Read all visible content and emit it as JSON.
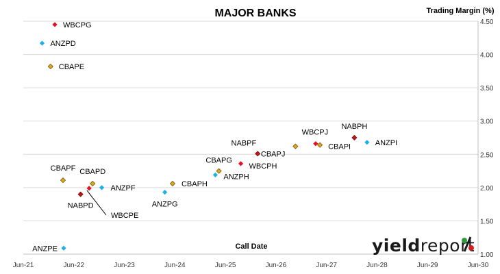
{
  "chart_data": {
    "type": "scatter",
    "title": "MAJOR BANKS",
    "xlabel": "Call Date",
    "ylabel": "Trading Margin (%)",
    "x_ticks": [
      "Jun-21",
      "Jun-22",
      "Jun-23",
      "Jun-24",
      "Jun-25",
      "Jun-26",
      "Jun-27",
      "Jun-28",
      "Jun-29",
      "Jun-30"
    ],
    "xlim": [
      "2021-06",
      "2030-06"
    ],
    "y_ticks": [
      "1.00",
      "1.50",
      "2.00",
      "2.50",
      "3.00",
      "3.50",
      "4.00",
      "4.50"
    ],
    "ylim": [
      1.0,
      4.5
    ],
    "y_axis_side": "right",
    "grid": "horizontal",
    "series": [
      {
        "name": "ANZ",
        "color": "#1fb0e6",
        "points": [
          {
            "label": "ANZPD",
            "x": "2021-10-15",
            "y": 4.17
          },
          {
            "label": "ANZPE",
            "x": "2022-03-20",
            "y": 1.09
          },
          {
            "label": "ANZPF",
            "x": "2022-12-20",
            "y": 2.0
          },
          {
            "label": "ANZPG",
            "x": "2024-03-20",
            "y": 1.93
          },
          {
            "label": "ANZPH",
            "x": "2025-03-20",
            "y": 2.19
          },
          {
            "label": "ANZPI",
            "x": "2028-03-20",
            "y": 2.68
          }
        ]
      },
      {
        "name": "CBA",
        "color": "#d9a81f",
        "points": [
          {
            "label": "CBAPE",
            "x": "2021-12-15",
            "y": 3.82
          },
          {
            "label": "CBAPF",
            "x": "2022-03-15",
            "y": 2.11
          },
          {
            "label": "CBAPD",
            "x": "2022-10-15",
            "y": 2.06
          },
          {
            "label": "CBAPH",
            "x": "2024-05-15",
            "y": 2.06
          },
          {
            "label": "CBAPG",
            "x": "2025-04-15",
            "y": 2.25
          },
          {
            "label": "CBAPJ",
            "x": "2026-10-20",
            "y": 2.62
          },
          {
            "label": "CBAPI",
            "x": "2027-04-15",
            "y": 2.64
          }
        ]
      },
      {
        "name": "NAB",
        "color": "#b5191b",
        "points": [
          {
            "label": "NABPD",
            "x": "2022-07-20",
            "y": 1.9
          },
          {
            "label": "NABPF",
            "x": "2026-01-20",
            "y": 2.51
          },
          {
            "label": "NABPH",
            "x": "2027-12-20",
            "y": 2.75
          }
        ]
      },
      {
        "name": "WBC",
        "color": "#e8101e",
        "points": [
          {
            "label": "WBCPG",
            "x": "2022-01-15",
            "y": 4.45
          },
          {
            "label": "WBCPE",
            "x": "2022-09-20",
            "y": 1.99
          },
          {
            "label": "WBCPH",
            "x": "2025-09-20",
            "y": 2.36
          },
          {
            "label": "WBCPJ",
            "x": "2027-03-15",
            "y": 2.66
          }
        ]
      }
    ]
  },
  "logo": {
    "part1": "yield",
    "part2": "report",
    "symbol": "%",
    "colors": {
      "green": "#2e9b3c",
      "red": "#d11f1f"
    }
  }
}
